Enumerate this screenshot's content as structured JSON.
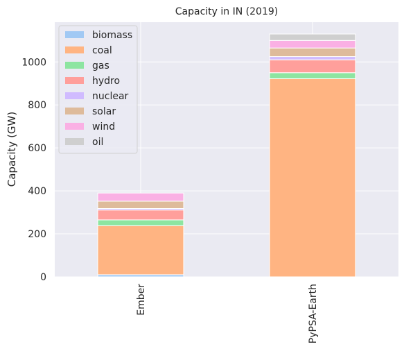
{
  "chart_data": {
    "type": "bar",
    "stacked": true,
    "title": "Capacity in IN (2019)",
    "xlabel": "",
    "ylabel": "Capacity (GW)",
    "ylim": [
      0,
      1185
    ],
    "yticks": [
      0,
      200,
      400,
      600,
      800,
      1000
    ],
    "grid": true,
    "legend_position": "top-left",
    "categories": [
      "Ember",
      "PyPSA-Earth"
    ],
    "series": [
      {
        "name": "biomass",
        "color": "#a1c9f4",
        "values": [
          10,
          0
        ]
      },
      {
        "name": "coal",
        "color": "#ffb482",
        "values": [
          228,
          922
        ]
      },
      {
        "name": "gas",
        "color": "#8de5a1",
        "values": [
          27,
          28
        ]
      },
      {
        "name": "hydro",
        "color": "#ff9f9b",
        "values": [
          46,
          60
        ]
      },
      {
        "name": "nuclear",
        "color": "#d0bbff",
        "values": [
          7,
          15
        ]
      },
      {
        "name": "solar",
        "color": "#debb9b",
        "values": [
          34,
          40
        ]
      },
      {
        "name": "wind",
        "color": "#fab0e4",
        "values": [
          38,
          35
        ]
      },
      {
        "name": "oil",
        "color": "#cfcfcf",
        "values": [
          0,
          30
        ]
      }
    ]
  }
}
